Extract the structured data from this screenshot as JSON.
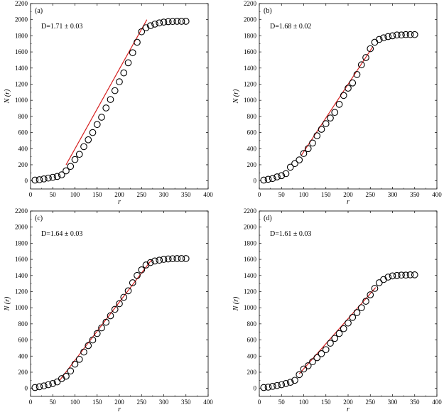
{
  "chart_data": [
    {
      "type": "scatter",
      "panel_label": "(a)",
      "annotation": "D=1.71 ± 0.03",
      "xlabel": "r",
      "ylabel": "N (r)",
      "xlim": [
        0,
        400
      ],
      "ylim": [
        -100,
        2200
      ],
      "xticks": [
        0,
        50,
        100,
        150,
        200,
        250,
        300,
        350,
        400
      ],
      "yticks": [
        0,
        200,
        400,
        600,
        800,
        1000,
        1200,
        1400,
        1600,
        1800,
        2000,
        2200
      ],
      "series": [
        {
          "name": "data",
          "x": [
            10,
            20,
            30,
            40,
            50,
            60,
            70,
            80,
            90,
            100,
            110,
            120,
            130,
            140,
            150,
            160,
            170,
            180,
            190,
            200,
            210,
            220,
            230,
            240,
            250,
            260,
            270,
            280,
            290,
            300,
            310,
            320,
            330,
            340,
            350
          ],
          "y": [
            10,
            15,
            25,
            35,
            45,
            55,
            75,
            125,
            180,
            265,
            330,
            425,
            510,
            600,
            700,
            790,
            905,
            1010,
            1120,
            1230,
            1340,
            1465,
            1590,
            1720,
            1850,
            1900,
            1925,
            1945,
            1960,
            1970,
            1975,
            1978,
            1980,
            1980,
            1980
          ]
        }
      ],
      "fit_line": {
        "x": [
          80,
          262
        ],
        "y": [
          200,
          2000
        ],
        "color": "#d62020"
      }
    },
    {
      "type": "scatter",
      "panel_label": "(b)",
      "annotation": "D=1.68 ± 0.02",
      "xlabel": "r",
      "ylabel": "N (r)",
      "xlim": [
        0,
        400
      ],
      "ylim": [
        -100,
        2200
      ],
      "xticks": [
        0,
        50,
        100,
        150,
        200,
        250,
        300,
        350,
        400
      ],
      "yticks": [
        0,
        200,
        400,
        600,
        800,
        1000,
        1200,
        1400,
        1600,
        1800,
        2000,
        2200
      ],
      "series": [
        {
          "name": "data",
          "x": [
            10,
            20,
            30,
            40,
            50,
            60,
            70,
            80,
            90,
            100,
            110,
            120,
            130,
            140,
            150,
            160,
            170,
            180,
            190,
            200,
            210,
            220,
            230,
            240,
            250,
            260,
            270,
            280,
            290,
            300,
            310,
            320,
            330,
            340,
            350
          ],
          "y": [
            10,
            20,
            30,
            50,
            65,
            90,
            170,
            215,
            260,
            340,
            400,
            470,
            560,
            640,
            710,
            780,
            850,
            950,
            1060,
            1150,
            1215,
            1320,
            1440,
            1530,
            1640,
            1720,
            1755,
            1775,
            1790,
            1800,
            1810,
            1810,
            1815,
            1815,
            1815
          ]
        }
      ],
      "fit_line": {
        "x": [
          95,
          255
        ],
        "y": [
          320,
          1660
        ],
        "color": "#d62020"
      }
    },
    {
      "type": "scatter",
      "panel_label": "(c)",
      "annotation": "D=1.64 ± 0.03",
      "xlabel": "r",
      "ylabel": "N (r)",
      "xlim": [
        0,
        400
      ],
      "ylim": [
        -100,
        2200
      ],
      "xticks": [
        0,
        50,
        100,
        150,
        200,
        250,
        300,
        350,
        400
      ],
      "yticks": [
        0,
        200,
        400,
        600,
        800,
        1000,
        1200,
        1400,
        1600,
        1800,
        2000,
        2200
      ],
      "series": [
        {
          "name": "data",
          "x": [
            10,
            20,
            30,
            40,
            50,
            60,
            70,
            80,
            90,
            100,
            110,
            120,
            130,
            140,
            150,
            160,
            170,
            180,
            190,
            200,
            210,
            220,
            230,
            240,
            250,
            260,
            270,
            280,
            290,
            300,
            310,
            320,
            330,
            340,
            350
          ],
          "y": [
            10,
            20,
            30,
            45,
            60,
            80,
            120,
            150,
            215,
            300,
            360,
            450,
            530,
            600,
            680,
            750,
            820,
            900,
            980,
            1050,
            1130,
            1210,
            1310,
            1400,
            1470,
            1530,
            1560,
            1580,
            1590,
            1600,
            1605,
            1608,
            1610,
            1610,
            1610
          ]
        }
      ],
      "fit_line": {
        "x": [
          65,
          272
        ],
        "y": [
          95,
          1590
        ],
        "color": "#d62020"
      }
    },
    {
      "type": "scatter",
      "panel_label": "(d)",
      "annotation": "D=1.61 ± 0.03",
      "xlabel": "r",
      "ylabel": "N (r)",
      "xlim": [
        0,
        400
      ],
      "ylim": [
        -100,
        2200
      ],
      "xticks": [
        0,
        50,
        100,
        150,
        200,
        250,
        300,
        350,
        400
      ],
      "yticks": [
        0,
        200,
        400,
        600,
        800,
        1000,
        1200,
        1400,
        1600,
        1800,
        2000,
        2200
      ],
      "series": [
        {
          "name": "data",
          "x": [
            10,
            20,
            30,
            40,
            50,
            60,
            70,
            80,
            90,
            100,
            110,
            120,
            130,
            140,
            150,
            160,
            170,
            180,
            190,
            200,
            210,
            220,
            230,
            240,
            250,
            260,
            270,
            280,
            290,
            300,
            310,
            320,
            330,
            340,
            350
          ],
          "y": [
            10,
            15,
            25,
            35,
            45,
            60,
            75,
            100,
            170,
            240,
            280,
            330,
            380,
            430,
            480,
            560,
            620,
            680,
            740,
            810,
            880,
            940,
            1000,
            1080,
            1160,
            1240,
            1310,
            1350,
            1380,
            1395,
            1400,
            1405,
            1405,
            1408,
            1408
          ]
        }
      ],
      "fit_line": {
        "x": [
          90,
          262
        ],
        "y": [
          180,
          1250
        ],
        "color": "#d62020"
      }
    }
  ]
}
